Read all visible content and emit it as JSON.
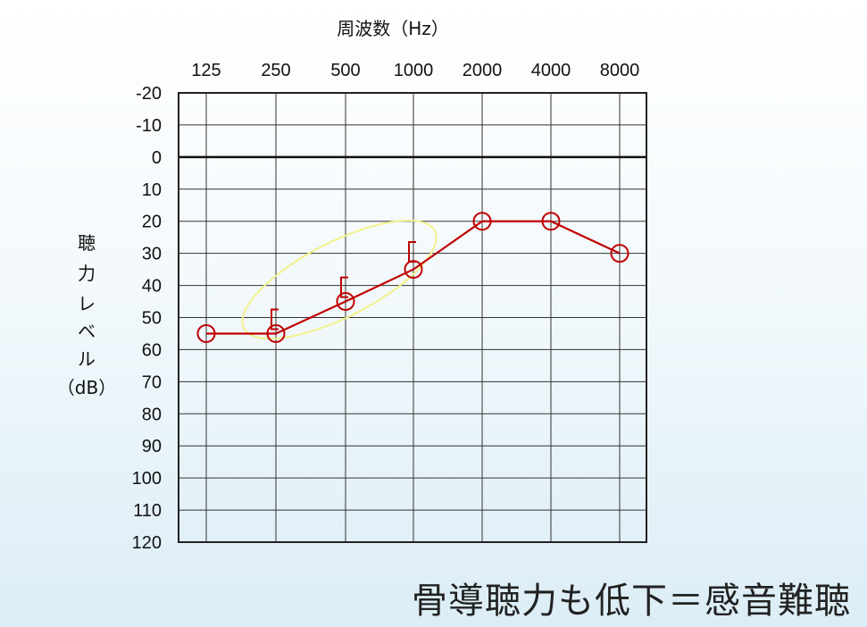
{
  "chart_data": {
    "type": "line",
    "xlabel": "周波数（Hz）",
    "ylabel": [
      "聴",
      "力",
      "レ",
      "ベ",
      "ル",
      "（dB）"
    ],
    "x": [
      "125",
      "250",
      "500",
      "1000",
      "2000",
      "4000",
      "8000"
    ],
    "y_ticks": [
      "-20",
      "-10",
      "0",
      "10",
      "20",
      "30",
      "40",
      "50",
      "60",
      "70",
      "80",
      "90",
      "100",
      "110",
      "120"
    ],
    "ylim": [
      -20,
      120
    ],
    "y_inverted": true,
    "grid": true,
    "series": [
      {
        "marker": "circle",
        "color": "#c00000",
        "values": [
          55,
          55,
          45,
          35,
          20,
          20,
          30
        ]
      },
      {
        "marker": "bracket",
        "color": "#c00000",
        "line": false,
        "x": [
          "250",
          "500",
          "1000"
        ],
        "values": [
          50,
          40,
          29
        ]
      }
    ],
    "highlight": {
      "shape": "ellipse",
      "color": "#f2f28a",
      "around": [
        "250",
        "500",
        "1000"
      ]
    }
  },
  "caption": "骨導聴力も低下＝感音難聴"
}
